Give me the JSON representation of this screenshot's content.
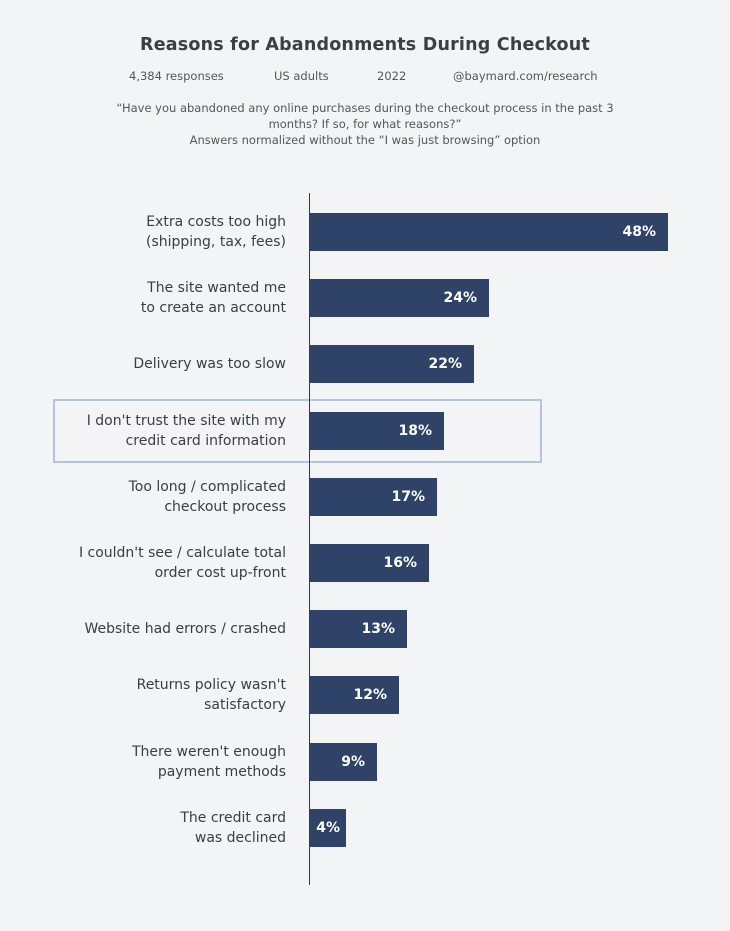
{
  "chart_data": {
    "type": "bar",
    "orientation": "horizontal",
    "title": "Reasons for Abandonments During Checkout",
    "meta": [
      "4,384 responses",
      "US adults",
      "2022",
      "@baymard.com/research"
    ],
    "question": "“Have you abandoned any online purchases during the checkout process in the past 3 months? If so,  for what reasons?”",
    "note": "Answers normalized without the “I was just browsing” option",
    "categories": [
      "Extra costs too high\n(shipping, tax, fees)",
      "The site wanted me\nto create an account",
      "Delivery was too slow",
      "I don't trust the site with my\ncredit card information",
      "Too long / complicated\ncheckout process",
      "I couldn't see / calculate total\norder cost up-front",
      "Website had errors / crashed",
      "Returns policy wasn't\nsatisfactory",
      "There weren't enough\npayment methods",
      "The credit card\nwas declined"
    ],
    "values": [
      48,
      24,
      22,
      18,
      17,
      16,
      13,
      12,
      9,
      4
    ],
    "value_labels": [
      "48%",
      "24%",
      "22%",
      "18%",
      "17%",
      "16%",
      "13%",
      "12%",
      "9%",
      "4%"
    ],
    "highlighted_index": 3,
    "bar_color": "#2f4368",
    "highlight_color": "#b4c3df",
    "grid": false
  }
}
